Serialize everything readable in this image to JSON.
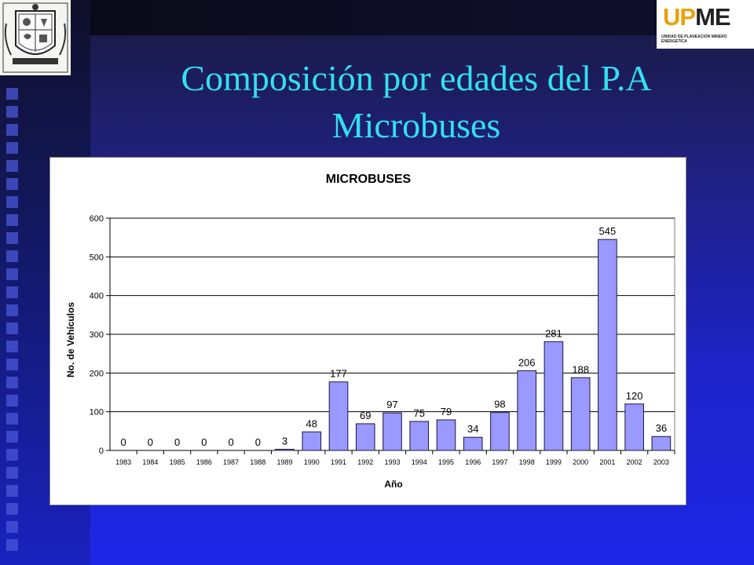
{
  "slide": {
    "title_line1": "Composición por edades del P.A",
    "title_line2": "Microbuses"
  },
  "logos": {
    "left_crest": "coat-of-arms-icon",
    "right_logo": {
      "text_main": "UPME",
      "text_sub": "UNIDAD DE PLANEACION MINERO ENERGETICA"
    }
  },
  "colors": {
    "title": "#33e0f0",
    "bar_fill": "#9999ff",
    "bar_stroke": "#1a1a3a",
    "plot_bg": "#ffffff",
    "gridline": "#000000"
  },
  "chart_data": {
    "type": "bar",
    "title": "MICROBUSES",
    "xlabel": "Año",
    "ylabel": "No. de Vehículos",
    "categories": [
      "1983",
      "1984",
      "1985",
      "1986",
      "1987",
      "1988",
      "1989",
      "1990",
      "1991",
      "1992",
      "1993",
      "1994",
      "1995",
      "1996",
      "1997",
      "1998",
      "1999",
      "2000",
      "2001",
      "2002",
      "2003"
    ],
    "values": [
      0,
      0,
      0,
      0,
      0,
      0,
      3,
      48,
      177,
      69,
      97,
      75,
      79,
      34,
      98,
      206,
      281,
      188,
      545,
      120,
      36
    ],
    "ylim": [
      0,
      600
    ],
    "yticks": [
      0,
      100,
      200,
      300,
      400,
      500,
      600
    ],
    "grid": true,
    "legend": "none"
  }
}
